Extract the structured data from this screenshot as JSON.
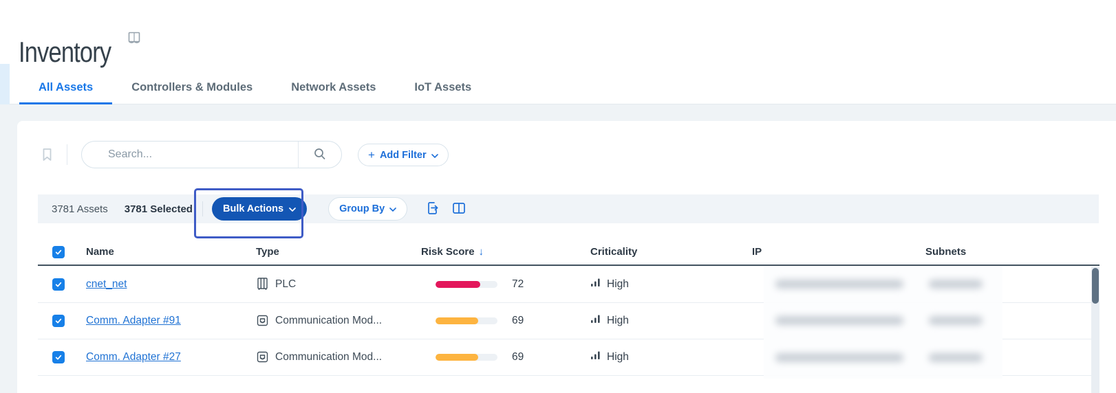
{
  "header": {
    "title": "Inventory"
  },
  "tabs": [
    {
      "label": "All Assets",
      "active": true
    },
    {
      "label": "Controllers & Modules",
      "active": false
    },
    {
      "label": "Network Assets",
      "active": false
    },
    {
      "label": "IoT Assets",
      "active": false
    }
  ],
  "search": {
    "placeholder": "Search...",
    "add_filter_plus": "+",
    "add_filter_label": "Add Filter"
  },
  "toolbar": {
    "assets_count": "3781 Assets",
    "selected_count": "3781 Selected",
    "bulk_actions_label": "Bulk Actions",
    "group_by_label": "Group By"
  },
  "annotation": {
    "highlight_target": "Bulk Actions"
  },
  "table": {
    "columns": {
      "name": "Name",
      "type": "Type",
      "risk_score": "Risk Score",
      "criticality": "Criticality",
      "ip": "IP",
      "subnets": "Subnets"
    },
    "sort": {
      "column": "Risk Score",
      "direction": "desc",
      "glyph": "↓"
    },
    "redacted_columns": [
      "IP",
      "Subnets"
    ],
    "rows": [
      {
        "selected": true,
        "name": "cnet_net",
        "type": "PLC",
        "type_icon": "plc-cabinet-icon",
        "risk_score": 72,
        "risk_color": "#E3175B",
        "criticality": "High"
      },
      {
        "selected": true,
        "name": "Comm. Adapter #91",
        "type": "Communication Mod...",
        "type_icon": "ethernet-module-icon",
        "risk_score": 69,
        "risk_color": "#FDB440",
        "criticality": "High"
      },
      {
        "selected": true,
        "name": "Comm. Adapter #27",
        "type": "Communication Mod...",
        "type_icon": "ethernet-module-icon",
        "risk_score": 69,
        "risk_color": "#FDB440",
        "criticality": "High"
      }
    ]
  },
  "colors": {
    "accent_blue": "#1877E8",
    "bulk_button_blue": "#1356B4",
    "highlight_border": "#3F5CC6",
    "risk_high_red": "#E3175B",
    "risk_medium_orange": "#FDB440"
  }
}
